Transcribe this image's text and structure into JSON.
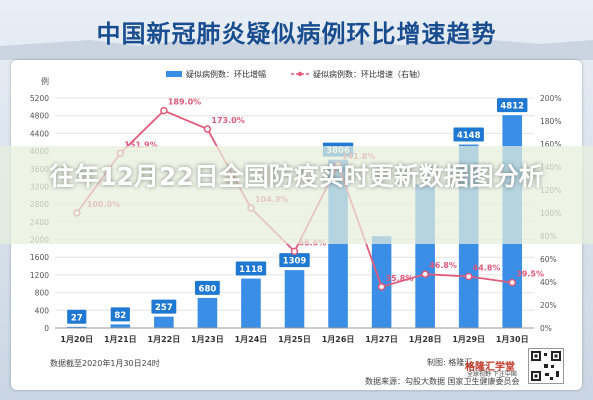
{
  "title": "中国新冠肺炎疑似病例环比增速趋势",
  "overlay": "往年12月22日全国防疫实时更新数据图分析",
  "footer": {
    "note": "数据截至2020年1月30日24时",
    "source": "数据来源：勾股大数据 国家卫生健康委员会",
    "logo_text": "格隆汇学堂",
    "logo_sub": "全球视野 下注中国",
    "wiki": "制图: 格隆汇"
  },
  "colors": {
    "bar": "#3a8ee6",
    "bar_label_bg": "#1f78d1",
    "line": "#e05a7a",
    "title": "#1a4d8f"
  },
  "chart_data": {
    "type": "bar",
    "categories": [
      "1月20日",
      "1月21日",
      "1月22日",
      "1月23日",
      "1月24日",
      "1月25日",
      "1月26日",
      "1月27日",
      "1月28日",
      "1月29日",
      "1月30日"
    ],
    "series": [
      {
        "name": "疑似病例数：环比增幅",
        "type": "bar",
        "axis": "left",
        "values": [
          27,
          82,
          257,
          680,
          1118,
          1309,
          3806,
          2077,
          3248,
          4148,
          4812
        ]
      },
      {
        "name": "疑似病例数：环比增速（右轴）",
        "type": "line",
        "axis": "right",
        "values": [
          100.0,
          151.9,
          189.0,
          173.0,
          104.3,
          66.6,
          141.8,
          35.8,
          46.8,
          44.8,
          39.5
        ]
      }
    ],
    "bar_labels": [
      "27",
      "82",
      "257",
      "680",
      "1118",
      "1309",
      "3806",
      "",
      "",
      "4148",
      "4812"
    ],
    "line_labels": [
      "100.0%",
      "151.9%",
      "189.0%",
      "173.0%",
      "104.3%",
      "66.6%",
      "141.8%",
      "35.8%",
      "46.8%",
      "44.8%",
      "39.5%"
    ],
    "y_left": {
      "label": "例",
      "ylim": [
        0,
        5200
      ],
      "ticks": [
        0,
        400,
        800,
        1200,
        1600,
        2000,
        2400,
        2800,
        3200,
        3600,
        4000,
        4400,
        4800,
        5200
      ]
    },
    "y_right": {
      "ylim": [
        0,
        200
      ],
      "ticks": [
        "0%",
        "20%",
        "40%",
        "60%",
        "80%",
        "100%",
        "120%",
        "140%",
        "160%",
        "180%",
        "200%"
      ]
    },
    "legend_position": "top",
    "grid": true
  }
}
